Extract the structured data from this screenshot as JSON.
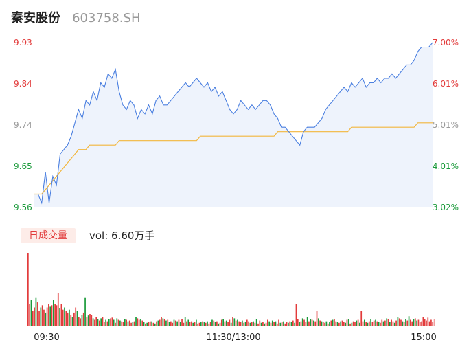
{
  "stock": {
    "name": "秦安股份",
    "code": "603758.SH"
  },
  "volume": {
    "tag": "日成交量",
    "label": "vol: 6.60万手"
  },
  "colors": {
    "up": "#e23b3b",
    "down": "#1a9a3a",
    "neutral": "#999999",
    "price": "#4a7fe0",
    "avg": "#f2b63c",
    "fill": "#eef3fc"
  },
  "chart_data": [
    {
      "type": "line",
      "y_ticks_left": [
        "9.93",
        "9.84",
        "9.74",
        "9.65",
        "9.56"
      ],
      "y_ticks_right": [
        "7.00%",
        "6.01%",
        "5.01%",
        "4.01%",
        "3.02%"
      ],
      "ylim": [
        9.56,
        9.93
      ],
      "x_ticks": [
        "09:30",
        "11:30/13:00",
        "15:00"
      ],
      "series": [
        {
          "values": [
            9.59,
            9.59,
            9.57,
            9.64,
            9.57,
            9.63,
            9.61,
            9.68,
            9.69,
            9.7,
            9.72,
            9.75,
            9.78,
            9.76,
            9.8,
            9.79,
            9.82,
            9.8,
            9.84,
            9.83,
            9.86,
            9.85,
            9.87,
            9.82,
            9.79,
            9.78,
            9.8,
            9.79,
            9.76,
            9.78,
            9.77,
            9.79,
            9.77,
            9.8,
            9.81,
            9.79,
            9.79,
            9.8,
            9.81,
            9.82,
            9.83,
            9.84,
            9.83,
            9.84,
            9.85,
            9.84,
            9.83,
            9.84,
            9.82,
            9.83,
            9.81,
            9.82,
            9.8,
            9.78,
            9.77,
            9.78,
            9.8,
            9.79,
            9.78,
            9.79,
            9.78,
            9.79,
            9.8,
            9.8,
            9.79,
            9.77,
            9.76,
            9.74,
            9.74,
            9.73,
            9.72,
            9.71,
            9.7,
            9.73,
            9.74,
            9.74,
            9.74,
            9.75,
            9.76,
            9.78,
            9.79,
            9.8,
            9.81,
            9.82,
            9.83,
            9.82,
            9.84,
            9.83,
            9.84,
            9.85,
            9.83,
            9.84,
            9.84,
            9.85,
            9.84,
            9.85,
            9.85,
            9.86,
            9.85,
            9.86,
            9.87,
            9.88,
            9.88,
            9.89,
            9.91,
            9.92,
            9.92,
            9.92,
            9.93
          ]
        },
        {
          "values": [
            9.59,
            9.59,
            9.59,
            9.6,
            9.61,
            9.62,
            9.63,
            9.64,
            9.65,
            9.66,
            9.67,
            9.68,
            9.69,
            9.69,
            9.69,
            9.7,
            9.7,
            9.7,
            9.7,
            9.7,
            9.7,
            9.7,
            9.7,
            9.71,
            9.71,
            9.71,
            9.71,
            9.71,
            9.71,
            9.71,
            9.71,
            9.71,
            9.71,
            9.71,
            9.71,
            9.71,
            9.71,
            9.71,
            9.71,
            9.71,
            9.71,
            9.71,
            9.71,
            9.71,
            9.71,
            9.72,
            9.72,
            9.72,
            9.72,
            9.72,
            9.72,
            9.72,
            9.72,
            9.72,
            9.72,
            9.72,
            9.72,
            9.72,
            9.72,
            9.72,
            9.72,
            9.72,
            9.72,
            9.72,
            9.72,
            9.72,
            9.73,
            9.73,
            9.73,
            9.73,
            9.73,
            9.73,
            9.73,
            9.73,
            9.73,
            9.73,
            9.73,
            9.73,
            9.73,
            9.73,
            9.73,
            9.73,
            9.73,
            9.73,
            9.73,
            9.73,
            9.74,
            9.74,
            9.74,
            9.74,
            9.74,
            9.74,
            9.74,
            9.74,
            9.74,
            9.74,
            9.74,
            9.74,
            9.74,
            9.74,
            9.74,
            9.74,
            9.74,
            9.74,
            9.75,
            9.75,
            9.75,
            9.75,
            9.75
          ]
        }
      ]
    },
    {
      "type": "bar",
      "values": [
        100,
        30,
        35,
        20,
        25,
        38,
        32,
        20,
        25,
        28,
        22,
        18,
        25,
        30,
        26,
        28,
        35,
        30,
        28,
        45,
        24,
        30,
        22,
        25,
        20,
        18,
        22,
        15,
        12,
        18,
        25,
        20,
        12,
        10,
        15,
        18,
        38,
        12,
        14,
        16,
        15,
        10,
        8,
        12,
        9,
        7,
        10,
        12,
        5,
        8,
        6,
        9,
        10,
        11,
        8,
        4,
        10,
        8,
        7,
        6,
        5,
        9,
        8,
        6,
        7,
        4,
        5,
        6,
        12,
        10,
        8,
        9,
        7,
        5,
        3,
        4,
        5,
        6,
        6,
        4,
        3,
        6,
        7,
        8,
        12,
        10,
        9,
        7,
        8,
        5,
        6,
        4,
        8,
        7,
        6,
        8,
        5,
        9,
        4,
        12,
        6,
        8,
        5,
        6,
        4,
        5,
        8,
        3,
        4,
        5,
        6,
        5,
        4,
        6,
        3,
        5,
        8,
        7,
        5,
        6,
        3,
        4,
        8,
        9,
        6,
        7,
        5,
        8,
        4,
        12,
        10,
        7,
        8,
        6,
        5,
        7,
        4,
        5,
        8,
        6,
        4,
        5,
        6,
        4,
        9,
        3,
        7,
        4,
        5,
        3,
        4,
        8,
        6,
        4,
        7,
        5,
        6,
        3,
        8,
        4,
        5,
        6,
        3,
        5,
        4,
        6,
        5,
        7,
        4,
        30,
        9,
        5,
        6,
        10,
        8,
        5,
        12,
        6,
        9,
        8,
        7,
        6,
        20,
        10,
        7,
        6,
        5,
        4,
        6,
        3,
        5,
        7,
        8,
        9,
        6,
        5,
        4,
        6,
        7,
        5,
        4,
        8,
        9,
        3,
        4,
        6,
        5,
        7,
        8,
        4,
        20,
        6,
        8,
        5,
        4,
        6,
        9,
        5,
        7,
        8,
        6,
        5,
        4,
        8,
        6,
        7,
        10,
        9,
        5,
        8,
        6,
        4,
        7,
        12,
        10,
        8,
        6,
        5,
        9,
        7,
        13,
        8,
        6,
        9,
        10,
        7,
        8,
        5,
        6,
        12,
        9,
        7,
        11,
        6,
        8,
        5,
        9
      ],
      "colors": [
        "up",
        "up",
        "down",
        "up",
        "up",
        "down",
        "up",
        "up",
        "down",
        "up",
        "up",
        "down",
        "up",
        "up",
        "down",
        "up",
        "down",
        "up",
        "up",
        "up",
        "down",
        "up",
        "up",
        "down",
        "up",
        "up",
        "down",
        "up",
        "down",
        "up",
        "up",
        "down",
        "up",
        "up",
        "down",
        "up",
        "down",
        "up",
        "down",
        "up",
        "up",
        "down",
        "up",
        "up",
        "down",
        "up",
        "down",
        "up",
        "up",
        "down",
        "up",
        "down",
        "up",
        "up",
        "down",
        "up",
        "down",
        "up",
        "down",
        "up",
        "up",
        "down",
        "up",
        "down",
        "up",
        "up",
        "down",
        "up",
        "down",
        "up",
        "up",
        "down",
        "up",
        "down",
        "up",
        "down",
        "up",
        "up",
        "down",
        "up",
        "down",
        "up",
        "down",
        "up",
        "up",
        "down",
        "up",
        "down",
        "up",
        "down",
        "up",
        "up",
        "down",
        "up",
        "down",
        "up",
        "down",
        "up",
        "up",
        "down",
        "up",
        "down",
        "up",
        "up",
        "down",
        "up",
        "down",
        "up",
        "up",
        "down",
        "up",
        "down",
        "up",
        "down",
        "up",
        "up",
        "down",
        "up",
        "down",
        "up",
        "down",
        "up",
        "up",
        "down",
        "up",
        "down",
        "up",
        "up",
        "down",
        "up",
        "down",
        "up",
        "down",
        "up",
        "up",
        "down",
        "up",
        "down",
        "up",
        "up",
        "down",
        "up",
        "down",
        "up",
        "down",
        "up",
        "up",
        "down",
        "up",
        "down",
        "up",
        "up",
        "down",
        "up",
        "down",
        "up",
        "down",
        "up",
        "up",
        "down",
        "up",
        "down",
        "up",
        "up",
        "down",
        "up",
        "down",
        "up",
        "down",
        "up",
        "up",
        "down",
        "up",
        "down",
        "up",
        "up",
        "down",
        "up",
        "down",
        "up",
        "down",
        "up",
        "up",
        "down",
        "up",
        "down",
        "up",
        "up",
        "down",
        "up",
        "down",
        "up",
        "down",
        "up",
        "up",
        "down",
        "up",
        "down",
        "up",
        "up",
        "down",
        "up",
        "down",
        "up",
        "down",
        "up",
        "up",
        "down",
        "up",
        "down",
        "up",
        "up",
        "down",
        "up",
        "down",
        "up",
        "down",
        "up",
        "up",
        "down",
        "up",
        "down",
        "up",
        "up",
        "down",
        "up",
        "down",
        "up",
        "down",
        "up",
        "up",
        "down",
        "up",
        "down",
        "up",
        "up",
        "down",
        "up",
        "down",
        "up",
        "down",
        "up",
        "up",
        "down",
        "up",
        "down",
        "up"
      ]
    }
  ]
}
